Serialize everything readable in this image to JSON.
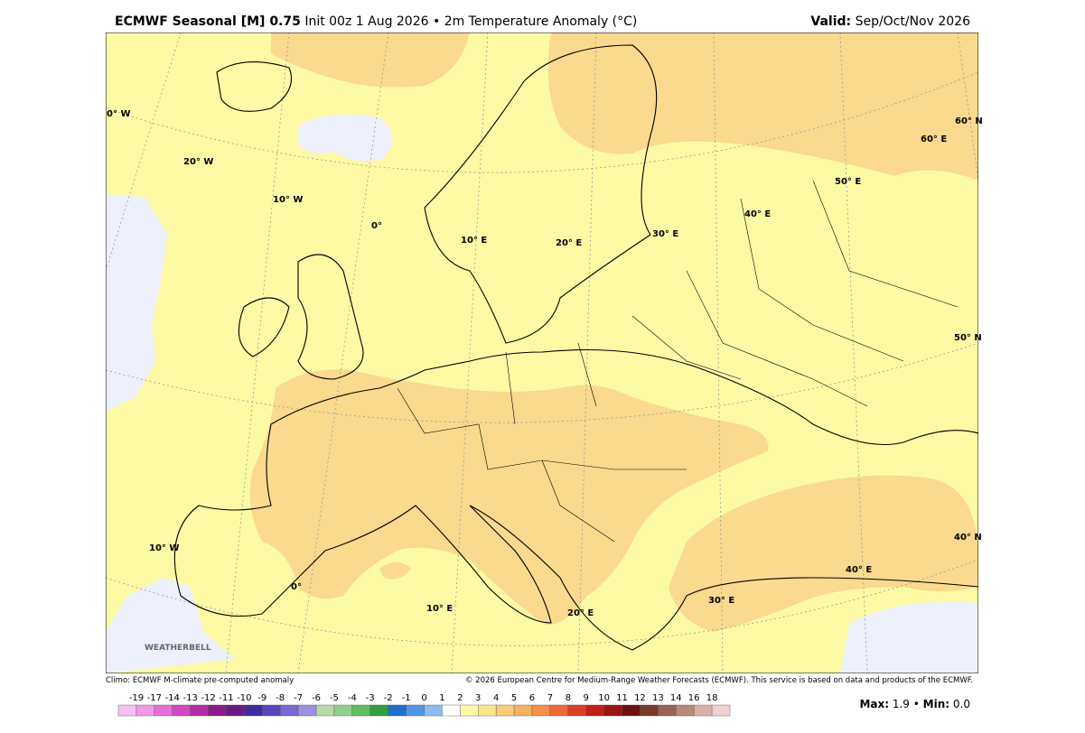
{
  "header": {
    "title_bold": "ECMWF Seasonal [M] 0.75",
    "title_rest": "Init 00z 1 Aug 2026 • 2m Temperature Anomaly (°C)",
    "valid_label": "Valid:",
    "valid_value": "Sep/Oct/Nov 2026"
  },
  "map": {
    "geo_labels": [
      "0° W",
      "20° W",
      "10° W",
      "0°",
      "10° E",
      "20° E",
      "30° E",
      "40° E",
      "50° E",
      "60° E",
      "60° N",
      "50° N",
      "40° N",
      "10° W",
      "0°",
      "10° E",
      "20° E",
      "30° E",
      "40° E"
    ]
  },
  "footer": {
    "climo": "Climo: ECMWF M-climate pre-computed anomaly",
    "copyright": "© 2026 European Centre for Medium-Range Weather Forecasts (ECMWF). This service is based on data and products of the ECMWF.",
    "max_label": "Max:",
    "max_value": "1.9",
    "sep": "•",
    "min_label": "Min:",
    "min_value": "0.0"
  },
  "colorbar": {
    "labels": [
      -19,
      -17,
      -14,
      -13,
      -12,
      -11,
      -10,
      -9,
      -8,
      -7,
      -6,
      -5,
      -4,
      -3,
      -2,
      -1,
      0,
      1,
      2,
      3,
      4,
      5,
      6,
      7,
      8,
      9,
      10,
      11,
      12,
      13,
      14,
      16,
      18
    ],
    "colors": [
      "#f7c0f2",
      "#f09ae8",
      "#e66ed8",
      "#d447c2",
      "#b52ca6",
      "#8e1a8a",
      "#6a1a88",
      "#3f2a9e",
      "#5546c0",
      "#7868d6",
      "#9c8fe4",
      "#b9d8a8",
      "#8fd08a",
      "#5fbf5f",
      "#2f9f3f",
      "#1f6fd0",
      "#4f96e6",
      "#8cbcf0",
      "#ffffff",
      "#fdfaa6",
      "#fbe58c",
      "#fbcd7a",
      "#f8b062",
      "#f4904c",
      "#ee6a38",
      "#dc3f26",
      "#c0201a",
      "#9a1414",
      "#6e0f0f",
      "#7a3a2a",
      "#9a6250",
      "#b88878",
      "#d8b0a8",
      "#f0d0d0"
    ]
  }
}
